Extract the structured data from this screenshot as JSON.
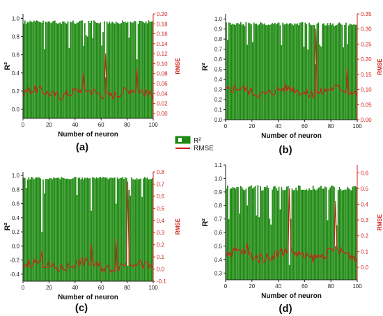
{
  "colors": {
    "r2": "#1f8a13",
    "rmse": "#d0201a"
  },
  "legend": {
    "r2_label": "R²",
    "rmse_label": "RMSE"
  },
  "chart_data": [
    {
      "panel": "(a)",
      "type": "bar+line",
      "xlabel": "Number of neuron",
      "ylabel": "R²",
      "ylabel_right": "RMSE",
      "xlim": [
        0,
        100
      ],
      "xticks": [
        0,
        20,
        40,
        60,
        80,
        100
      ],
      "ylim": [
        -0.1,
        1.05
      ],
      "yticks": [
        0.0,
        0.2,
        0.4,
        0.6,
        0.8,
        1.0
      ],
      "ylim_right": [
        -0.01,
        0.2
      ],
      "yticks_right": [
        0.0,
        0.02,
        0.04,
        0.06,
        0.08,
        0.1,
        0.12,
        0.14,
        0.16,
        0.18,
        0.2
      ],
      "r2_typical": 0.98,
      "r2_dips": [
        [
          64,
          0.35
        ],
        [
          88,
          0.55
        ],
        [
          47,
          0.7
        ]
      ],
      "rmse_typical": 0.042,
      "rmse_spikes": [
        [
          64,
          0.12
        ],
        [
          88,
          0.09
        ],
        [
          47,
          0.08
        ]
      ]
    },
    {
      "panel": "(b)",
      "type": "bar+line",
      "xlabel": "Number of neuron",
      "ylabel": "R²",
      "ylabel_right": "RMSE",
      "xlim": [
        0,
        100
      ],
      "xticks": [
        0,
        20,
        40,
        60,
        80,
        100
      ],
      "ylim": [
        0.0,
        1.05
      ],
      "yticks": [
        0.0,
        0.1,
        0.2,
        0.3,
        0.4,
        0.5,
        0.6,
        0.7,
        0.8,
        0.9,
        1.0
      ],
      "ylim_right": [
        0.0,
        0.35
      ],
      "yticks_right": [
        0.0,
        0.05,
        0.1,
        0.15,
        0.2,
        0.25,
        0.3,
        0.35
      ],
      "r2_typical": 0.97,
      "r2_dips": [
        [
          69,
          0.55
        ],
        [
          93,
          0.75
        ]
      ],
      "rmse_typical": 0.095,
      "rmse_spikes": [
        [
          69,
          0.3
        ],
        [
          93,
          0.17
        ]
      ]
    },
    {
      "panel": "(c)",
      "type": "bar+line",
      "xlabel": "Number of neuron",
      "ylabel": "R²",
      "ylabel_right": "RMSE",
      "xlim": [
        0,
        100
      ],
      "xticks": [
        0,
        20,
        40,
        60,
        80,
        100
      ],
      "ylim": [
        -0.5,
        1.05
      ],
      "yticks": [
        -0.4,
        -0.2,
        0.0,
        0.2,
        0.4,
        0.6,
        0.8,
        1.0
      ],
      "ylim_right": [
        -0.1,
        0.8
      ],
      "yticks_right": [
        -0.1,
        0.0,
        0.1,
        0.2,
        0.3,
        0.4,
        0.5,
        0.6,
        0.7,
        0.8
      ],
      "r2_typical": 0.98,
      "r2_dips": [
        [
          15,
          0.2
        ],
        [
          81,
          -0.28
        ],
        [
          72,
          0.6
        ],
        [
          53,
          0.5
        ]
      ],
      "rmse_typical": 0.03,
      "rmse_spikes": [
        [
          15,
          0.15
        ],
        [
          81,
          0.72
        ],
        [
          72,
          0.25
        ],
        [
          53,
          0.2
        ]
      ]
    },
    {
      "panel": "(d)",
      "type": "bar+line",
      "xlabel": "Number of neuron",
      "ylabel": "R²",
      "ylabel_right": "RMSE",
      "xlim": [
        0,
        100
      ],
      "xticks": [
        0,
        20,
        40,
        60,
        80,
        100
      ],
      "ylim": [
        0.25,
        1.1
      ],
      "yticks": [
        0.3,
        0.4,
        0.5,
        0.6,
        0.7,
        0.8,
        0.9,
        1.0,
        1.1
      ],
      "ylim_right": [
        -0.08,
        0.65
      ],
      "yticks_right": [
        0.0,
        0.1,
        0.2,
        0.3,
        0.4,
        0.5,
        0.6
      ],
      "r2_typical": 0.95,
      "r2_dips": [
        [
          49,
          0.36
        ],
        [
          84,
          0.5
        ],
        [
          17,
          0.8
        ]
      ],
      "rmse_typical": 0.08,
      "rmse_spikes": [
        [
          49,
          0.5
        ],
        [
          84,
          0.42
        ],
        [
          17,
          0.15
        ]
      ]
    }
  ]
}
